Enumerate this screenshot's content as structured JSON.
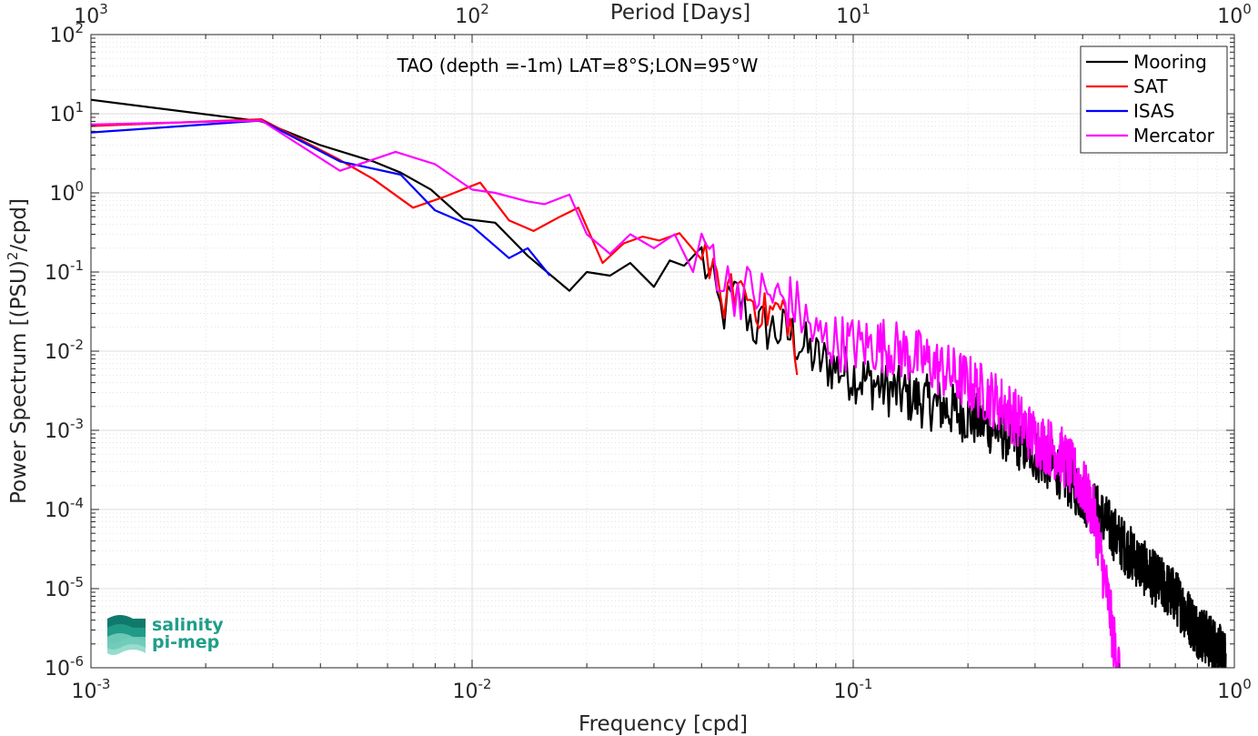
{
  "chart_data": {
    "type": "line",
    "title": "TAO (depth =-1m) LAT=8°S;LON=95°W",
    "xlabel": "Frequency [cpd]",
    "ylabel": "Power Spectrum [(PSU)²/cpd]",
    "top_xlabel": "Period [Days]",
    "x_scale": "log",
    "y_scale": "log",
    "xlim": [
      0.001,
      1
    ],
    "ylim": [
      1e-06,
      100
    ],
    "grid": true,
    "legend_position": "top-right",
    "x_ticks": [
      {
        "base": "10",
        "exp": "-3"
      },
      {
        "base": "10",
        "exp": "-2"
      },
      {
        "base": "10",
        "exp": "-1"
      },
      {
        "base": "10",
        "exp": "0"
      }
    ],
    "top_x_ticks": [
      {
        "base": "10",
        "exp": "3"
      },
      {
        "base": "10",
        "exp": "2"
      },
      {
        "base": "10",
        "exp": "1"
      },
      {
        "base": "10",
        "exp": "0"
      }
    ],
    "y_ticks": [
      {
        "base": "10",
        "exp": "-6"
      },
      {
        "base": "10",
        "exp": "-5"
      },
      {
        "base": "10",
        "exp": "-4"
      },
      {
        "base": "10",
        "exp": "-3"
      },
      {
        "base": "10",
        "exp": "-2"
      },
      {
        "base": "10",
        "exp": "-1"
      },
      {
        "base": "10",
        "exp": "0"
      },
      {
        "base": "10",
        "exp": "1"
      },
      {
        "base": "10",
        "exp": "2"
      }
    ],
    "series": [
      {
        "name": "Mooring",
        "color": "#000000",
        "anchors": [
          [
            0.001,
            15
          ],
          [
            0.0028,
            8
          ],
          [
            0.004,
            4
          ],
          [
            0.0055,
            2.5
          ],
          [
            0.0065,
            1.8
          ],
          [
            0.0078,
            1.1
          ],
          [
            0.0095,
            0.47
          ],
          [
            0.0115,
            0.42
          ],
          [
            0.014,
            0.16
          ],
          [
            0.018,
            0.058
          ],
          [
            0.02,
            0.1
          ],
          [
            0.023,
            0.09
          ],
          [
            0.026,
            0.13
          ],
          [
            0.03,
            0.065
          ],
          [
            0.033,
            0.14
          ],
          [
            0.036,
            0.12
          ],
          [
            0.04,
            0.16
          ],
          [
            0.045,
            0.03
          ],
          [
            0.05,
            0.05
          ],
          [
            0.055,
            0.02
          ],
          [
            0.06,
            0.02
          ],
          [
            0.07,
            0.015
          ],
          [
            0.08,
            0.008
          ],
          [
            0.1,
            0.005
          ],
          [
            0.13,
            0.003
          ],
          [
            0.17,
            0.002
          ],
          [
            0.2,
            0.0015
          ],
          [
            0.25,
            0.0009
          ],
          [
            0.3,
            0.0005
          ],
          [
            0.35,
            0.0003
          ],
          [
            0.4,
            0.00015
          ],
          [
            0.45,
            8e-05
          ],
          [
            0.5,
            4e-05
          ],
          [
            0.6,
            1.5e-05
          ],
          [
            0.7,
            8e-06
          ],
          [
            0.8,
            3e-06
          ],
          [
            0.9,
            1.8e-06
          ],
          [
            0.95,
            1.2e-06
          ]
        ],
        "noise": 0.16,
        "noise_start": 0.04,
        "x_end": 0.95
      },
      {
        "name": "SAT",
        "color": "#ff0000",
        "anchors": [
          [
            0.001,
            7
          ],
          [
            0.0028,
            8.5
          ],
          [
            0.0045,
            2.6
          ],
          [
            0.0055,
            1.5
          ],
          [
            0.007,
            0.65
          ],
          [
            0.0085,
            0.9
          ],
          [
            0.0105,
            1.35
          ],
          [
            0.0125,
            0.45
          ],
          [
            0.0145,
            0.33
          ],
          [
            0.017,
            0.5
          ],
          [
            0.019,
            0.65
          ],
          [
            0.022,
            0.13
          ],
          [
            0.025,
            0.23
          ],
          [
            0.028,
            0.28
          ],
          [
            0.031,
            0.25
          ],
          [
            0.035,
            0.31
          ],
          [
            0.04,
            0.25
          ],
          [
            0.045,
            0.04
          ],
          [
            0.05,
            0.07
          ],
          [
            0.058,
            0.03
          ],
          [
            0.065,
            0.035
          ],
          [
            0.068,
            0.025
          ],
          [
            0.072,
            0.004
          ]
        ],
        "noise": 0.12,
        "noise_start": 0.04,
        "x_end": 0.072
      },
      {
        "name": "ISAS",
        "color": "#0000ff",
        "anchors": [
          [
            0.001,
            5.8
          ],
          [
            0.0028,
            8.2
          ],
          [
            0.0045,
            2.5
          ],
          [
            0.0065,
            1.7
          ],
          [
            0.008,
            0.6
          ],
          [
            0.01,
            0.38
          ],
          [
            0.0125,
            0.15
          ],
          [
            0.014,
            0.2
          ],
          [
            0.016,
            0.09
          ]
        ],
        "noise": 0,
        "noise_start": 1,
        "x_end": 0.016
      },
      {
        "name": "Mercator",
        "color": "#ff00ff",
        "anchors": [
          [
            0.001,
            7.3
          ],
          [
            0.0028,
            8.2
          ],
          [
            0.0045,
            1.9
          ],
          [
            0.0063,
            3.3
          ],
          [
            0.008,
            2.3
          ],
          [
            0.01,
            1.1
          ],
          [
            0.0115,
            1.0
          ],
          [
            0.014,
            0.78
          ],
          [
            0.0155,
            0.72
          ],
          [
            0.018,
            0.95
          ],
          [
            0.02,
            0.3
          ],
          [
            0.023,
            0.17
          ],
          [
            0.026,
            0.3
          ],
          [
            0.03,
            0.2
          ],
          [
            0.034,
            0.3
          ],
          [
            0.038,
            0.1
          ],
          [
            0.042,
            0.22
          ],
          [
            0.046,
            0.07
          ],
          [
            0.05,
            0.06
          ],
          [
            0.06,
            0.05
          ],
          [
            0.07,
            0.04
          ],
          [
            0.08,
            0.015
          ],
          [
            0.1,
            0.012
          ],
          [
            0.12,
            0.012
          ],
          [
            0.15,
            0.008
          ],
          [
            0.2,
            0.004
          ],
          [
            0.25,
            0.002
          ],
          [
            0.3,
            0.0008
          ],
          [
            0.35,
            0.0005
          ],
          [
            0.4,
            0.0002
          ],
          [
            0.43,
            8e-05
          ],
          [
            0.45,
            2e-05
          ],
          [
            0.47,
            6e-06
          ],
          [
            0.48,
            2.5e-06
          ],
          [
            0.5,
            9e-07
          ]
        ],
        "noise": 0.17,
        "noise_start": 0.04,
        "x_end": 0.5
      }
    ]
  },
  "logo": {
    "line1": "salinity",
    "line2": "pi-mep",
    "color": "#1f9e89"
  }
}
